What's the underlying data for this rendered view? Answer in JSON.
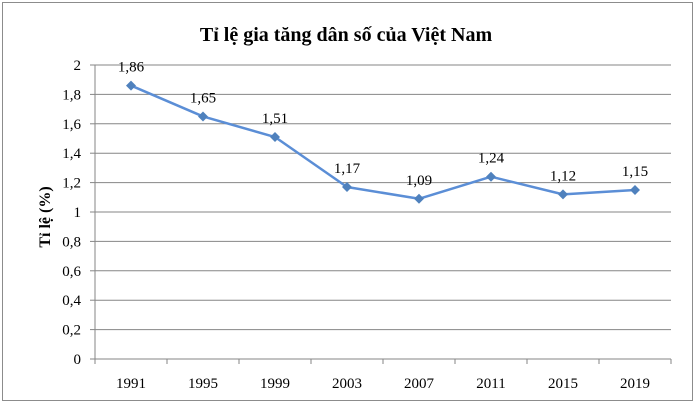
{
  "chart_data": {
    "type": "line",
    "title": "Tỉ lệ gia tăng dân số của Việt Nam",
    "ylabel": "Tỉ lệ (%)",
    "xlabel": "",
    "categories": [
      "1991",
      "1995",
      "1999",
      "2003",
      "2007",
      "2011",
      "2015",
      "2019"
    ],
    "values": [
      1.86,
      1.65,
      1.51,
      1.17,
      1.09,
      1.24,
      1.12,
      1.15
    ],
    "data_labels": [
      "1,86",
      "1,65",
      "1,51",
      "1,17",
      "1,09",
      "1,24",
      "1,12",
      "1,15"
    ],
    "ylim": [
      0,
      2
    ],
    "yticks": [
      0,
      0.2,
      0.4,
      0.6,
      0.8,
      1,
      1.2,
      1.4,
      1.6,
      1.8,
      2
    ],
    "ytick_labels": [
      "0",
      "0,2",
      "0,4",
      "0,6",
      "0,8",
      "1",
      "1,2",
      "1,4",
      "1,6",
      "1,8",
      "2"
    ],
    "grid": true,
    "legend": "none",
    "colors": {
      "line": "#5b8ed6",
      "marker": "#4f81bd",
      "grid": "#868686",
      "axis": "#868686"
    }
  }
}
